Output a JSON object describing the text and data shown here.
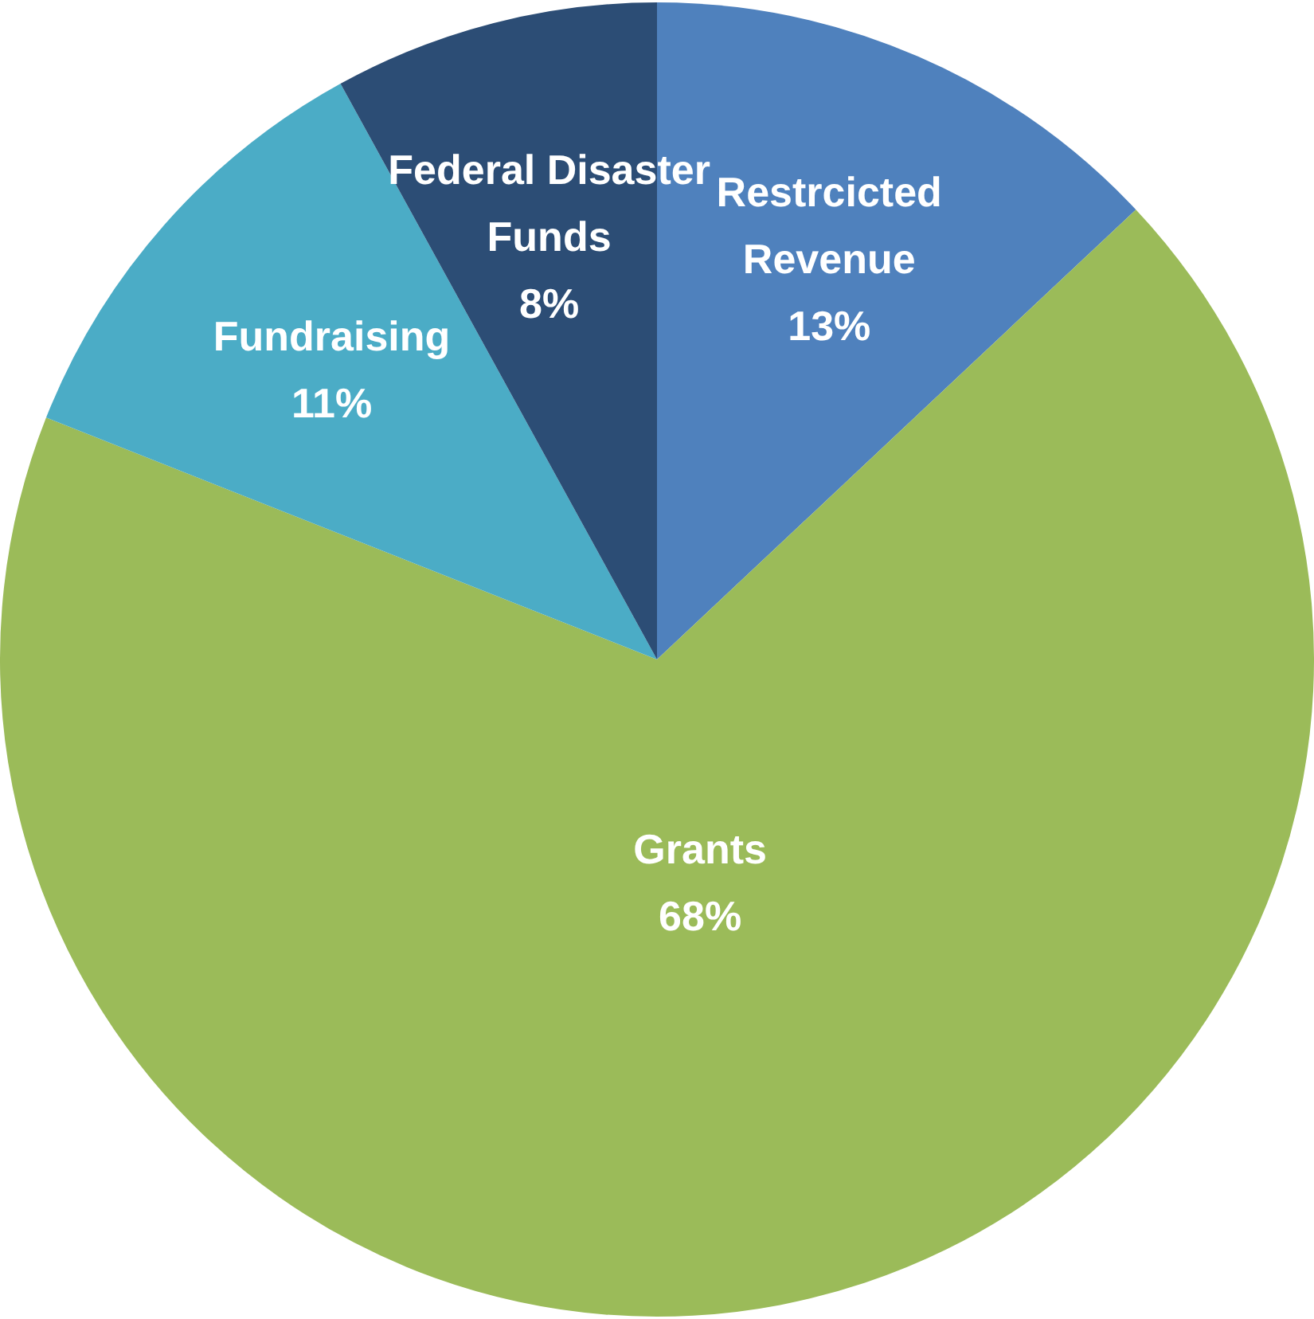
{
  "chart_data": {
    "type": "pie",
    "categories": [
      "Restrcicted Revenue",
      "Grants",
      "Fundraising",
      "Federal Disaster Funds"
    ],
    "values": [
      13,
      68,
      11,
      8
    ],
    "colors": [
      "#4f81bd",
      "#9bbb59",
      "#4bacc6",
      "#2c4d75"
    ],
    "value_labels": [
      "13%",
      "68%",
      "11%",
      "8%"
    ],
    "legend": false
  }
}
